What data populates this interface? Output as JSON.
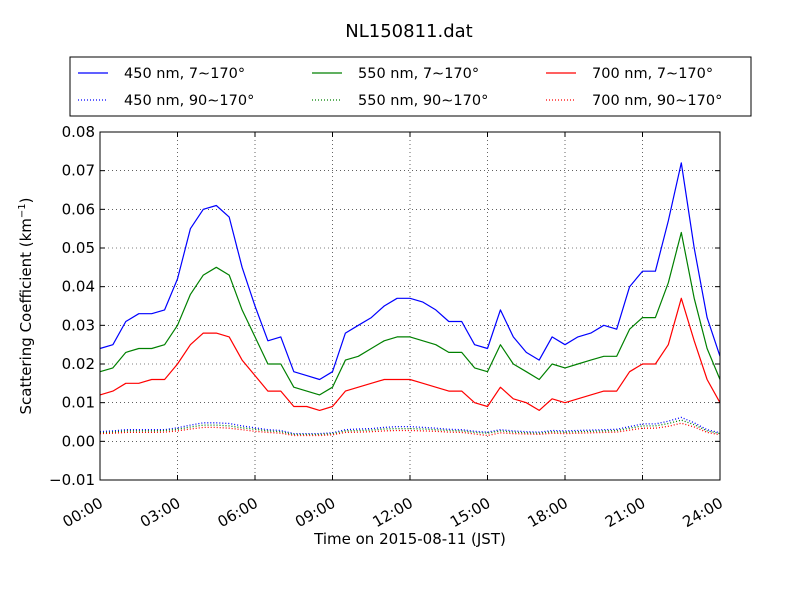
{
  "chart_data": {
    "type": "line",
    "title": "NL150811.dat",
    "xlabel": "Time on 2015-08-11 (JST)",
    "ylabel_main": "Scattering Coefficient (km",
    "ylabel_sup": "−1",
    "ylabel_end": ")",
    "xlim": [
      0,
      24
    ],
    "ylim": [
      -0.01,
      0.08
    ],
    "x_ticks": [
      0,
      3,
      6,
      9,
      12,
      15,
      18,
      21,
      24
    ],
    "x_tick_labels": [
      "00:00",
      "03:00",
      "06:00",
      "09:00",
      "12:00",
      "15:00",
      "18:00",
      "21:00",
      "24:00"
    ],
    "y_ticks": [
      -0.01,
      0.0,
      0.01,
      0.02,
      0.03,
      0.04,
      0.05,
      0.06,
      0.07,
      0.08
    ],
    "y_tick_labels": [
      "−0.01",
      "0.00",
      "0.01",
      "0.02",
      "0.03",
      "0.04",
      "0.05",
      "0.06",
      "0.07",
      "0.08"
    ],
    "grid": true,
    "legend_position": "top",
    "series": [
      {
        "name": "450 nm, 7∼170°",
        "color": "#0000ff",
        "style": "solid",
        "x": [
          0.0,
          0.5,
          1.0,
          1.5,
          2.0,
          2.5,
          3.0,
          3.5,
          4.0,
          4.5,
          5.0,
          5.5,
          6.0,
          6.5,
          7.0,
          7.5,
          8.0,
          8.5,
          9.0,
          9.5,
          10.0,
          10.5,
          11.0,
          11.5,
          12.0,
          12.5,
          13.0,
          13.5,
          14.0,
          14.5,
          15.0,
          15.5,
          16.0,
          16.5,
          17.0,
          17.5,
          18.0,
          18.5,
          19.0,
          19.5,
          20.0,
          20.5,
          21.0,
          21.5,
          22.0,
          22.5,
          23.0,
          23.5,
          24.0
        ],
        "y": [
          0.024,
          0.025,
          0.031,
          0.033,
          0.033,
          0.034,
          0.042,
          0.055,
          0.06,
          0.061,
          0.058,
          0.045,
          0.035,
          0.026,
          0.027,
          0.018,
          0.017,
          0.016,
          0.018,
          0.028,
          0.03,
          0.032,
          0.035,
          0.037,
          0.037,
          0.036,
          0.034,
          0.031,
          0.031,
          0.025,
          0.024,
          0.034,
          0.027,
          0.023,
          0.021,
          0.027,
          0.025,
          0.027,
          0.028,
          0.03,
          0.029,
          0.04,
          0.044,
          0.044,
          0.057,
          0.072,
          0.05,
          0.032,
          0.022
        ]
      },
      {
        "name": "450 nm, 90∼170°",
        "color": "#0000ff",
        "style": "dotted",
        "x": [
          0.0,
          0.5,
          1.0,
          1.5,
          2.0,
          2.5,
          3.0,
          3.5,
          4.0,
          4.5,
          5.0,
          5.5,
          6.0,
          6.5,
          7.0,
          7.5,
          8.0,
          8.5,
          9.0,
          9.5,
          10.0,
          10.5,
          11.0,
          11.5,
          12.0,
          12.5,
          13.0,
          13.5,
          14.0,
          14.5,
          15.0,
          15.5,
          16.0,
          16.5,
          17.0,
          17.5,
          18.0,
          18.5,
          19.0,
          19.5,
          20.0,
          20.5,
          21.0,
          21.5,
          22.0,
          22.5,
          23.0,
          23.5,
          24.0
        ],
        "y": [
          0.0025,
          0.0027,
          0.003,
          0.003,
          0.003,
          0.003,
          0.0035,
          0.0042,
          0.0048,
          0.0048,
          0.0046,
          0.004,
          0.0035,
          0.003,
          0.0028,
          0.002,
          0.002,
          0.002,
          0.0022,
          0.003,
          0.0032,
          0.0033,
          0.0036,
          0.0038,
          0.0038,
          0.0036,
          0.0034,
          0.0031,
          0.003,
          0.0026,
          0.0024,
          0.003,
          0.0027,
          0.0025,
          0.0024,
          0.0028,
          0.0027,
          0.0028,
          0.0029,
          0.003,
          0.0031,
          0.0038,
          0.0045,
          0.0045,
          0.0052,
          0.0062,
          0.0048,
          0.003,
          0.0022
        ]
      },
      {
        "name": "550 nm, 7∼170°",
        "color": "#008000",
        "style": "solid",
        "x": [
          0.0,
          0.5,
          1.0,
          1.5,
          2.0,
          2.5,
          3.0,
          3.5,
          4.0,
          4.5,
          5.0,
          5.5,
          6.0,
          6.5,
          7.0,
          7.5,
          8.0,
          8.5,
          9.0,
          9.5,
          10.0,
          10.5,
          11.0,
          11.5,
          12.0,
          12.5,
          13.0,
          13.5,
          14.0,
          14.5,
          15.0,
          15.5,
          16.0,
          16.5,
          17.0,
          17.5,
          18.0,
          18.5,
          19.0,
          19.5,
          20.0,
          20.5,
          21.0,
          21.5,
          22.0,
          22.5,
          23.0,
          23.5,
          24.0
        ],
        "y": [
          0.018,
          0.019,
          0.023,
          0.024,
          0.024,
          0.025,
          0.03,
          0.038,
          0.043,
          0.045,
          0.043,
          0.034,
          0.027,
          0.02,
          0.02,
          0.014,
          0.013,
          0.012,
          0.014,
          0.021,
          0.022,
          0.024,
          0.026,
          0.027,
          0.027,
          0.026,
          0.025,
          0.023,
          0.023,
          0.019,
          0.018,
          0.025,
          0.02,
          0.018,
          0.016,
          0.02,
          0.019,
          0.02,
          0.021,
          0.022,
          0.022,
          0.029,
          0.032,
          0.032,
          0.041,
          0.054,
          0.037,
          0.024,
          0.016
        ]
      },
      {
        "name": "550 nm, 90∼170°",
        "color": "#008000",
        "style": "dotted",
        "x": [
          0.0,
          0.5,
          1.0,
          1.5,
          2.0,
          2.5,
          3.0,
          3.5,
          4.0,
          4.5,
          5.0,
          5.5,
          6.0,
          6.5,
          7.0,
          7.5,
          8.0,
          8.5,
          9.0,
          9.5,
          10.0,
          10.5,
          11.0,
          11.5,
          12.0,
          12.5,
          13.0,
          13.5,
          14.0,
          14.5,
          15.0,
          15.5,
          16.0,
          16.5,
          17.0,
          17.5,
          18.0,
          18.5,
          19.0,
          19.5,
          20.0,
          20.5,
          21.0,
          21.5,
          22.0,
          22.5,
          23.0,
          23.5,
          24.0
        ],
        "y": [
          0.0022,
          0.0024,
          0.0027,
          0.0027,
          0.0027,
          0.0028,
          0.0031,
          0.0037,
          0.0042,
          0.0042,
          0.004,
          0.0035,
          0.0031,
          0.0027,
          0.0025,
          0.0018,
          0.0018,
          0.0018,
          0.002,
          0.0027,
          0.0028,
          0.0029,
          0.0032,
          0.0033,
          0.0033,
          0.0032,
          0.003,
          0.0028,
          0.0027,
          0.0023,
          0.0021,
          0.0027,
          0.0024,
          0.0022,
          0.0021,
          0.0025,
          0.0024,
          0.0025,
          0.0026,
          0.0027,
          0.0028,
          0.0034,
          0.004,
          0.004,
          0.0046,
          0.0055,
          0.0043,
          0.0027,
          0.002
        ]
      },
      {
        "name": "700 nm, 7∼170°",
        "color": "#ff0000",
        "style": "solid",
        "x": [
          0.0,
          0.5,
          1.0,
          1.5,
          2.0,
          2.5,
          3.0,
          3.5,
          4.0,
          4.5,
          5.0,
          5.5,
          6.0,
          6.5,
          7.0,
          7.5,
          8.0,
          8.5,
          9.0,
          9.5,
          10.0,
          10.5,
          11.0,
          11.5,
          12.0,
          12.5,
          13.0,
          13.5,
          14.0,
          14.5,
          15.0,
          15.5,
          16.0,
          16.5,
          17.0,
          17.5,
          18.0,
          18.5,
          19.0,
          19.5,
          20.0,
          20.5,
          21.0,
          21.5,
          22.0,
          22.5,
          23.0,
          23.5,
          24.0
        ],
        "y": [
          0.012,
          0.013,
          0.015,
          0.015,
          0.016,
          0.016,
          0.02,
          0.025,
          0.028,
          0.028,
          0.027,
          0.021,
          0.017,
          0.013,
          0.013,
          0.009,
          0.009,
          0.008,
          0.009,
          0.013,
          0.014,
          0.015,
          0.016,
          0.016,
          0.016,
          0.015,
          0.014,
          0.013,
          0.013,
          0.01,
          0.009,
          0.014,
          0.011,
          0.01,
          0.008,
          0.011,
          0.01,
          0.011,
          0.012,
          0.013,
          0.013,
          0.018,
          0.02,
          0.02,
          0.025,
          0.037,
          0.026,
          0.016,
          0.01
        ]
      },
      {
        "name": "700 nm, 90∼170°",
        "color": "#ff0000",
        "style": "dotted",
        "x": [
          0.0,
          0.5,
          1.0,
          1.5,
          2.0,
          2.5,
          3.0,
          3.5,
          4.0,
          4.5,
          5.0,
          5.5,
          6.0,
          6.5,
          7.0,
          7.5,
          8.0,
          8.5,
          9.0,
          9.5,
          10.0,
          10.5,
          11.0,
          11.5,
          12.0,
          12.5,
          13.0,
          13.5,
          14.0,
          14.5,
          15.0,
          15.5,
          16.0,
          16.5,
          17.0,
          17.5,
          18.0,
          18.5,
          19.0,
          19.5,
          20.0,
          20.5,
          21.0,
          21.5,
          22.0,
          22.5,
          23.0,
          23.5,
          24.0
        ],
        "y": [
          0.002,
          0.0021,
          0.0023,
          0.0023,
          0.0023,
          0.0024,
          0.0027,
          0.0032,
          0.0036,
          0.0036,
          0.0034,
          0.003,
          0.0026,
          0.0023,
          0.0021,
          0.0015,
          0.0015,
          0.0015,
          0.0017,
          0.0023,
          0.0024,
          0.0025,
          0.0027,
          0.0028,
          0.0028,
          0.0027,
          0.0026,
          0.0024,
          0.0023,
          0.0019,
          0.0015,
          0.0022,
          0.002,
          0.0019,
          0.0018,
          0.0021,
          0.002,
          0.0021,
          0.0022,
          0.0023,
          0.0024,
          0.0029,
          0.0034,
          0.0034,
          0.0039,
          0.0047,
          0.0037,
          0.0023,
          0.0017
        ]
      }
    ]
  }
}
